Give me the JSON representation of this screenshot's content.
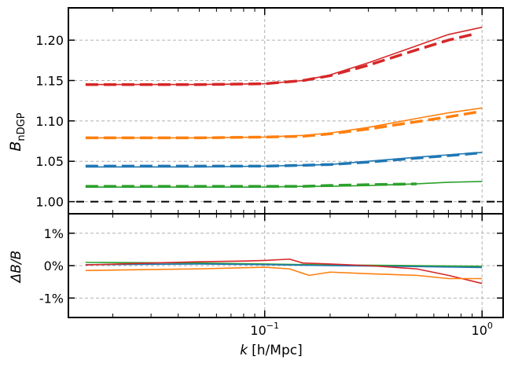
{
  "chart_data": [
    {
      "type": "line",
      "panel": "top",
      "ylabel": "B",
      "ylabel_sub": "nDGP",
      "xscale": "log",
      "xlim": [
        0.0125,
        1.25
      ],
      "ylim": [
        0.985,
        1.24
      ],
      "yticks": [
        1.0,
        1.05,
        1.1,
        1.15,
        1.2
      ],
      "ytick_labels": [
        "1.00",
        "1.05",
        "1.10",
        "1.15",
        "1.20"
      ],
      "grid": true,
      "reference_line": 1.0,
      "series": [
        {
          "color": "#d62728",
          "style": "solid",
          "x": [
            0.015,
            0.05,
            0.1,
            0.15,
            0.2,
            0.3,
            0.5,
            0.7,
            1.0
          ],
          "y": [
            1.145,
            1.145,
            1.146,
            1.15,
            1.157,
            1.172,
            1.193,
            1.207,
            1.216
          ]
        },
        {
          "color": "#d62728",
          "style": "dashed",
          "x": [
            0.015,
            0.05,
            0.1,
            0.15,
            0.2,
            0.3,
            0.5,
            0.7,
            0.9
          ],
          "y": [
            1.145,
            1.145,
            1.146,
            1.15,
            1.156,
            1.169,
            1.188,
            1.2,
            1.207
          ]
        },
        {
          "color": "#ff7f0e",
          "style": "solid",
          "x": [
            0.015,
            0.05,
            0.1,
            0.15,
            0.2,
            0.3,
            0.5,
            0.7,
            1.0
          ],
          "y": [
            1.079,
            1.079,
            1.08,
            1.082,
            1.085,
            1.092,
            1.103,
            1.11,
            1.116
          ]
        },
        {
          "color": "#ff7f0e",
          "style": "dashed",
          "x": [
            0.015,
            0.05,
            0.1,
            0.15,
            0.2,
            0.3,
            0.5,
            0.7,
            0.95
          ],
          "y": [
            1.079,
            1.079,
            1.08,
            1.081,
            1.084,
            1.09,
            1.099,
            1.105,
            1.111
          ]
        },
        {
          "color": "#1f77b4",
          "style": "solid",
          "x": [
            0.015,
            0.05,
            0.1,
            0.15,
            0.2,
            0.3,
            0.5,
            0.7,
            1.0
          ],
          "y": [
            1.043,
            1.043,
            1.044,
            1.045,
            1.046,
            1.05,
            1.055,
            1.058,
            1.061
          ]
        },
        {
          "color": "#1f77b4",
          "style": "dashed",
          "x": [
            0.015,
            0.05,
            0.1,
            0.15,
            0.2,
            0.3,
            0.5,
            0.7,
            0.95
          ],
          "y": [
            1.044,
            1.044,
            1.044,
            1.045,
            1.046,
            1.049,
            1.054,
            1.057,
            1.06
          ]
        },
        {
          "color": "#2ca02c",
          "style": "solid",
          "x": [
            0.015,
            0.05,
            0.1,
            0.15,
            0.2,
            0.3,
            0.5,
            0.7,
            1.0
          ],
          "y": [
            1.018,
            1.018,
            1.018,
            1.019,
            1.019,
            1.02,
            1.022,
            1.024,
            1.025
          ]
        },
        {
          "color": "#2ca02c",
          "style": "dashed",
          "x": [
            0.015,
            0.05,
            0.1,
            0.15,
            0.2,
            0.3,
            0.5
          ],
          "y": [
            1.019,
            1.019,
            1.019,
            1.019,
            1.02,
            1.021,
            1.022
          ]
        }
      ]
    },
    {
      "type": "line",
      "panel": "bottom",
      "xlabel": "k",
      "xlabel_units": "[h/Mpc]",
      "ylabel": "ΔB/B",
      "xscale": "log",
      "xlim": [
        0.0125,
        1.25
      ],
      "ylim": [
        -1.6,
        1.6
      ],
      "yticks": [
        -1,
        0,
        1
      ],
      "ytick_labels": [
        "-1%",
        "0%",
        "1%"
      ],
      "xticks": [
        0.1,
        1.0
      ],
      "grid": true,
      "series": [
        {
          "color": "#2ca02c",
          "style": "solid",
          "x": [
            0.015,
            0.05,
            0.1,
            0.2,
            0.5,
            1.0
          ],
          "y": [
            0.1,
            0.08,
            0.05,
            0.02,
            0.0,
            -0.02
          ]
        },
        {
          "color": "#1f77b4",
          "style": "solid",
          "x": [
            0.015,
            0.05,
            0.1,
            0.2,
            0.5,
            1.0
          ],
          "y": [
            0.03,
            0.05,
            0.03,
            0.0,
            -0.03,
            -0.06
          ]
        },
        {
          "color": "#d62728",
          "style": "solid",
          "x": [
            0.015,
            0.03,
            0.05,
            0.08,
            0.1,
            0.13,
            0.15,
            0.2,
            0.3,
            0.5,
            0.7,
            1.0
          ],
          "y": [
            0.02,
            0.08,
            0.12,
            0.14,
            0.16,
            0.2,
            0.08,
            0.05,
            0.0,
            -0.1,
            -0.3,
            -0.55
          ]
        },
        {
          "color": "#ff7f0e",
          "style": "solid",
          "x": [
            0.015,
            0.03,
            0.05,
            0.1,
            0.13,
            0.16,
            0.2,
            0.3,
            0.5,
            0.7,
            1.0
          ],
          "y": [
            -0.15,
            -0.12,
            -0.1,
            -0.05,
            -0.1,
            -0.3,
            -0.2,
            -0.25,
            -0.3,
            -0.4,
            -0.4
          ]
        }
      ]
    }
  ]
}
